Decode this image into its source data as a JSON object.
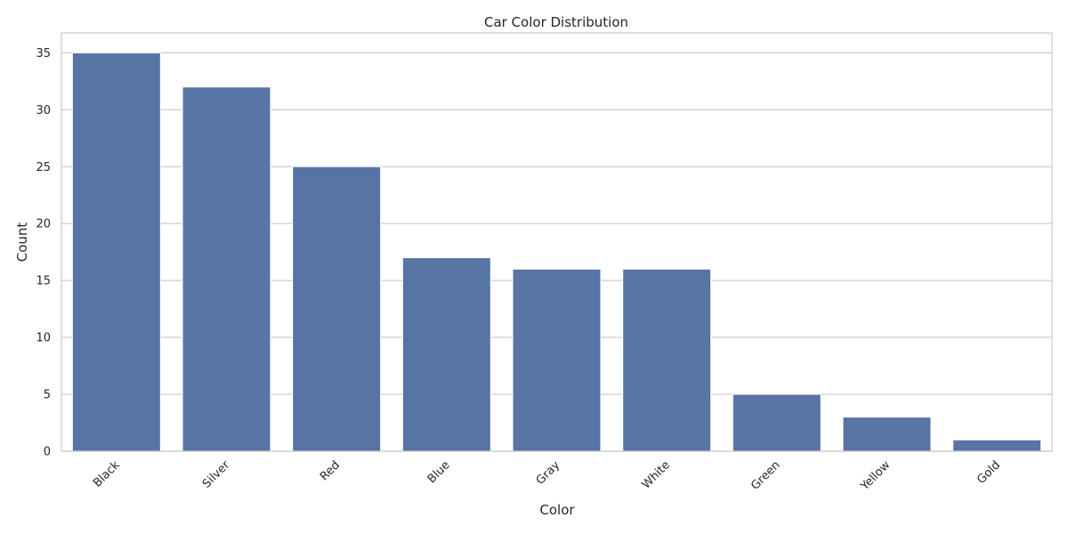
{
  "chart_data": {
    "type": "bar",
    "title": "Car Color Distribution",
    "xlabel": "Color",
    "ylabel": "Count",
    "categories": [
      "Black",
      "Silver",
      "Red",
      "Blue",
      "Gray",
      "White",
      "Green",
      "Yellow",
      "Gold"
    ],
    "values": [
      35,
      32,
      25,
      17,
      16,
      16,
      5,
      3,
      1
    ],
    "ylim": [
      0,
      36.75
    ],
    "yticks": [
      "0",
      "5",
      "10",
      "15",
      "20",
      "25",
      "30",
      "35"
    ],
    "grid": "horizontal",
    "x_tick_rotation": "45 degrees",
    "bar_color": "#5874a4",
    "grid_color": "#cccccc",
    "background_color": "#ffffff"
  }
}
